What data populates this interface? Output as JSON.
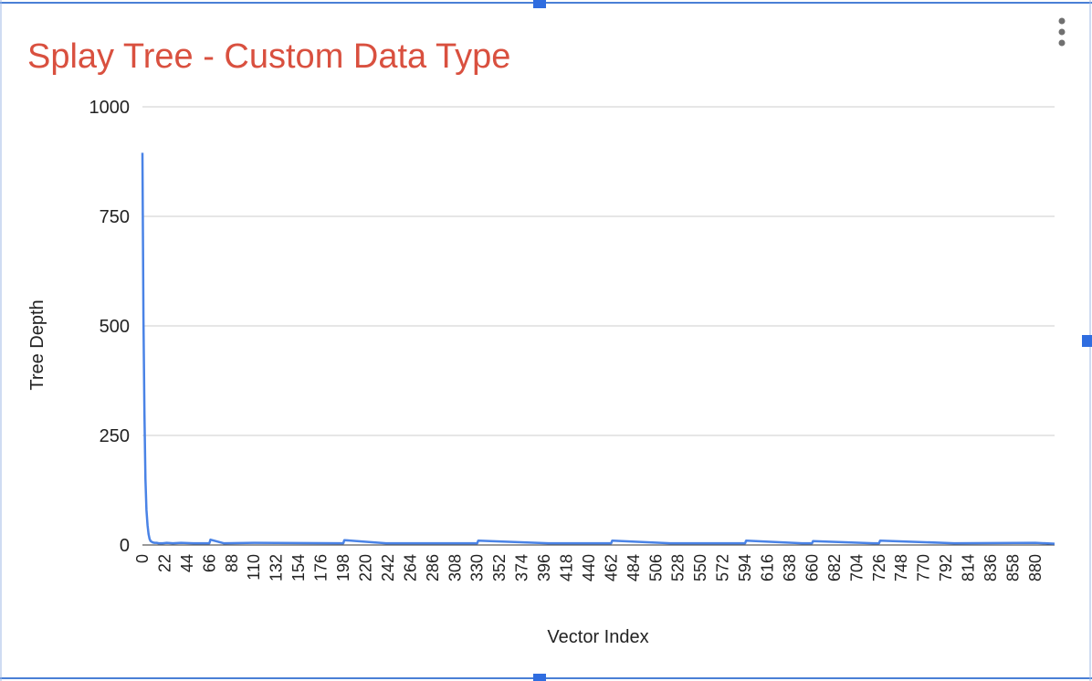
{
  "chart_data": {
    "type": "line",
    "title": "Splay Tree - Custom Data Type",
    "xlabel": "Vector Index",
    "ylabel": "Tree Depth",
    "ylim": [
      0,
      1000
    ],
    "xlim": [
      0,
      899
    ],
    "y_ticks": [
      0,
      250,
      500,
      750,
      1000
    ],
    "x_ticks": [
      0,
      22,
      44,
      66,
      88,
      110,
      132,
      154,
      176,
      198,
      220,
      242,
      264,
      286,
      308,
      330,
      352,
      374,
      396,
      418,
      440,
      462,
      484,
      506,
      528,
      550,
      572,
      594,
      616,
      638,
      660,
      682,
      704,
      726,
      748,
      770,
      792,
      814,
      836,
      858,
      880
    ],
    "grid": true,
    "legend": "none",
    "series": [
      {
        "name": "Tree Depth",
        "x": [
          0,
          1,
          2,
          3,
          4,
          5,
          6,
          7,
          8,
          10,
          12,
          14,
          16,
          20,
          24,
          30,
          38,
          50,
          66,
          67,
          80,
          110,
          198,
          199,
          240,
          330,
          331,
          400,
          462,
          463,
          520,
          594,
          595,
          650,
          660,
          661,
          720,
          726,
          727,
          800,
          880,
          899
        ],
        "values": [
          895,
          520,
          300,
          150,
          80,
          45,
          25,
          14,
          9,
          6,
          5,
          5,
          4,
          4,
          5,
          4,
          5,
          4,
          4,
          12,
          4,
          5,
          4,
          11,
          4,
          4,
          10,
          4,
          4,
          10,
          4,
          4,
          10,
          4,
          4,
          9,
          4,
          4,
          10,
          4,
          5,
          3
        ]
      }
    ]
  },
  "colors": {
    "title": "#d9503f",
    "series": "#4a83e6",
    "frame": "#4a7fd6"
  },
  "menu_icon": "more-vert-icon"
}
